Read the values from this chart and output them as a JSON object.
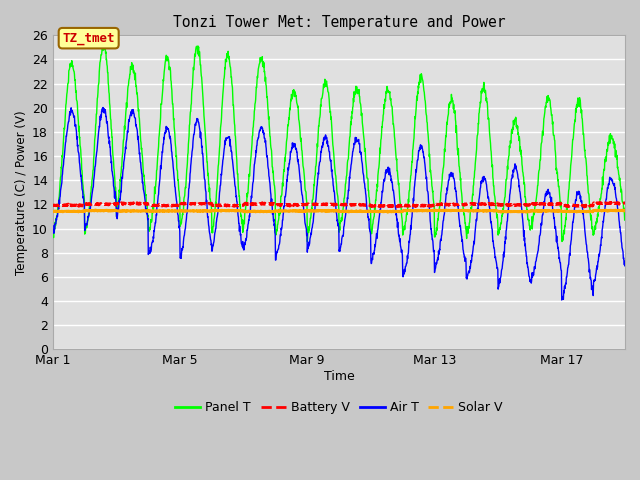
{
  "title": "Tonzi Tower Met: Temperature and Power",
  "xlabel": "Time",
  "ylabel": "Temperature (C) / Power (V)",
  "ylim": [
    0,
    26
  ],
  "yticks": [
    0,
    2,
    4,
    6,
    8,
    10,
    12,
    14,
    16,
    18,
    20,
    22,
    24,
    26
  ],
  "xtick_positions": [
    0,
    4,
    8,
    12,
    16
  ],
  "xtick_labels": [
    "Mar 1",
    "Mar 5",
    "Mar 9",
    "Mar 13",
    "Mar 17"
  ],
  "legend_labels": [
    "Panel T",
    "Battery V",
    "Air T",
    "Solar V"
  ],
  "legend_colors": [
    "#00FF00",
    "#FF0000",
    "#0000FF",
    "#FFA500"
  ],
  "annotation_text": "TZ_tmet",
  "annotation_color": "#CC0000",
  "annotation_bg": "#FFFF99",
  "annotation_border": "#996600",
  "fig_bg_color": "#C8C8C8",
  "plot_bg_color": "#E0E0E0",
  "grid_color": "#FFFFFF",
  "panel_T_color": "#00FF00",
  "battery_V_color": "#FF0000",
  "air_T_color": "#0000FF",
  "solar_V_color": "#FFA500",
  "n_days": 18,
  "battery_V_mean": 11.95,
  "solar_V_mean": 11.45
}
